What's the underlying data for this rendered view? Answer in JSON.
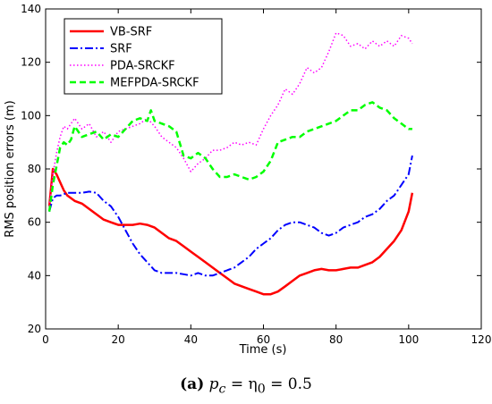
{
  "chart_data": {
    "type": "line",
    "title": "",
    "xlabel": "Time (s)",
    "ylabel": "RMS position errors (m)",
    "xlim": [
      0,
      120
    ],
    "ylim": [
      20,
      140
    ],
    "xticks": [
      0,
      20,
      40,
      60,
      80,
      100,
      120
    ],
    "yticks": [
      20,
      40,
      60,
      80,
      100,
      120,
      140
    ],
    "grid": false,
    "legend_position": "top-left",
    "series": [
      {
        "name": "VB-SRF",
        "color": "#ff0000",
        "dash": "solid",
        "x": [
          1,
          2,
          3,
          4,
          5,
          6,
          7,
          8,
          10,
          12,
          14,
          16,
          18,
          20,
          22,
          24,
          26,
          28,
          30,
          32,
          34,
          36,
          38,
          40,
          42,
          44,
          46,
          48,
          50,
          52,
          54,
          56,
          58,
          60,
          62,
          64,
          66,
          68,
          70,
          72,
          74,
          76,
          78,
          80,
          82,
          84,
          86,
          88,
          90,
          92,
          94,
          96,
          98,
          100,
          101
        ],
        "y": [
          66,
          80,
          78,
          75,
          72,
          70,
          69,
          68,
          67,
          65,
          63,
          61,
          60,
          59,
          59,
          59,
          59.5,
          59,
          58,
          56,
          54,
          53,
          51,
          49,
          47,
          45,
          43,
          41,
          39,
          37,
          36,
          35,
          34,
          33,
          33,
          34,
          36,
          38,
          40,
          41,
          42,
          42.5,
          42,
          42,
          42.5,
          43,
          43,
          44,
          45,
          47,
          50,
          53,
          57,
          64,
          71
        ]
      },
      {
        "name": "SRF",
        "color": "#0000ff",
        "dash": "dash-dot",
        "x": [
          1,
          2,
          3,
          4,
          6,
          8,
          10,
          12,
          14,
          16,
          18,
          20,
          22,
          24,
          26,
          28,
          30,
          32,
          34,
          36,
          38,
          40,
          42,
          44,
          46,
          48,
          50,
          52,
          54,
          56,
          58,
          60,
          62,
          64,
          66,
          68,
          70,
          72,
          74,
          76,
          78,
          80,
          82,
          84,
          86,
          88,
          90,
          92,
          94,
          96,
          98,
          100,
          101
        ],
        "y": [
          64,
          69,
          70,
          70,
          71,
          71,
          71,
          71.5,
          71,
          68,
          66,
          62,
          57,
          52,
          48,
          45,
          42,
          41,
          41,
          41,
          40.5,
          40,
          41,
          40,
          40,
          41,
          42,
          43,
          45,
          47,
          50,
          52,
          54,
          57,
          59,
          60,
          60,
          59,
          58,
          56,
          55,
          56,
          58,
          59,
          60,
          62,
          63,
          65,
          68,
          70,
          74,
          78,
          85
        ]
      },
      {
        "name": "PDA-SRCKF",
        "color": "#ff00ff",
        "dash": "dotted",
        "x": [
          1,
          2,
          3,
          4,
          5,
          6,
          7,
          8,
          10,
          12,
          14,
          16,
          18,
          20,
          22,
          24,
          26,
          28,
          30,
          32,
          34,
          36,
          38,
          40,
          42,
          44,
          46,
          48,
          50,
          52,
          54,
          56,
          58,
          60,
          62,
          64,
          66,
          68,
          70,
          72,
          74,
          76,
          78,
          80,
          82,
          84,
          86,
          88,
          90,
          92,
          94,
          96,
          98,
          100,
          101
        ],
        "y": [
          66,
          78,
          86,
          92,
          96,
          95,
          97,
          99,
          95,
          97,
          92,
          94,
          90,
          94,
          95,
          96,
          97,
          99,
          96,
          92,
          90,
          88,
          84,
          79,
          82,
          84,
          87,
          87,
          88,
          90,
          89,
          90,
          89,
          95,
          100,
          104,
          110,
          108,
          112,
          118,
          116,
          118,
          124,
          131,
          130,
          126,
          127,
          125,
          128,
          126,
          128,
          126,
          130,
          129,
          127
        ]
      },
      {
        "name": "MEFPDA-SRCKF",
        "color": "#00ff00",
        "dash": "dashed",
        "x": [
          1,
          2,
          3,
          4,
          5,
          6,
          7,
          8,
          10,
          12,
          14,
          16,
          18,
          20,
          22,
          24,
          26,
          28,
          29,
          30,
          32,
          34,
          36,
          38,
          40,
          42,
          44,
          46,
          48,
          50,
          52,
          54,
          56,
          58,
          60,
          62,
          64,
          66,
          68,
          70,
          72,
          74,
          76,
          78,
          80,
          82,
          84,
          86,
          88,
          90,
          92,
          94,
          96,
          98,
          100,
          101
        ],
        "y": [
          64,
          74,
          81,
          88,
          90,
          89,
          91,
          96,
          92,
          93,
          94,
          91,
          93,
          92,
          95,
          98,
          99,
          98,
          102,
          98,
          97,
          96,
          94,
          85,
          84,
          86,
          84,
          80,
          77,
          77,
          78,
          77,
          76,
          77,
          79,
          83,
          90,
          91,
          92,
          92,
          94,
          95,
          96,
          97,
          98,
          100,
          102,
          102,
          104,
          105,
          103,
          102,
          99,
          97,
          95,
          95
        ]
      }
    ]
  },
  "caption": {
    "label": "(a)",
    "formula": "p",
    "formula_sub": "c",
    "formula_mid": " = η",
    "formula_sub2": "0",
    "formula_end": " = 0.5"
  }
}
